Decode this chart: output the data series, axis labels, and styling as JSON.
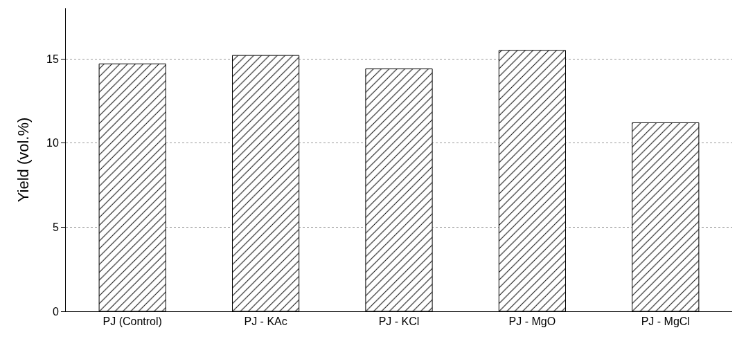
{
  "chart_data": {
    "type": "bar",
    "ylabel": "Yield (vol.%)",
    "categories": [
      "PJ (Control)",
      "PJ - KAc",
      "PJ - KCl",
      "PJ - MgO",
      "PJ - MgCl"
    ],
    "values": [
      14.7,
      15.2,
      14.4,
      15.5,
      11.2
    ],
    "color": "#000000",
    "ylim": [
      0,
      18
    ],
    "yticks": [
      0,
      5,
      10,
      15
    ],
    "grid": "y"
  }
}
